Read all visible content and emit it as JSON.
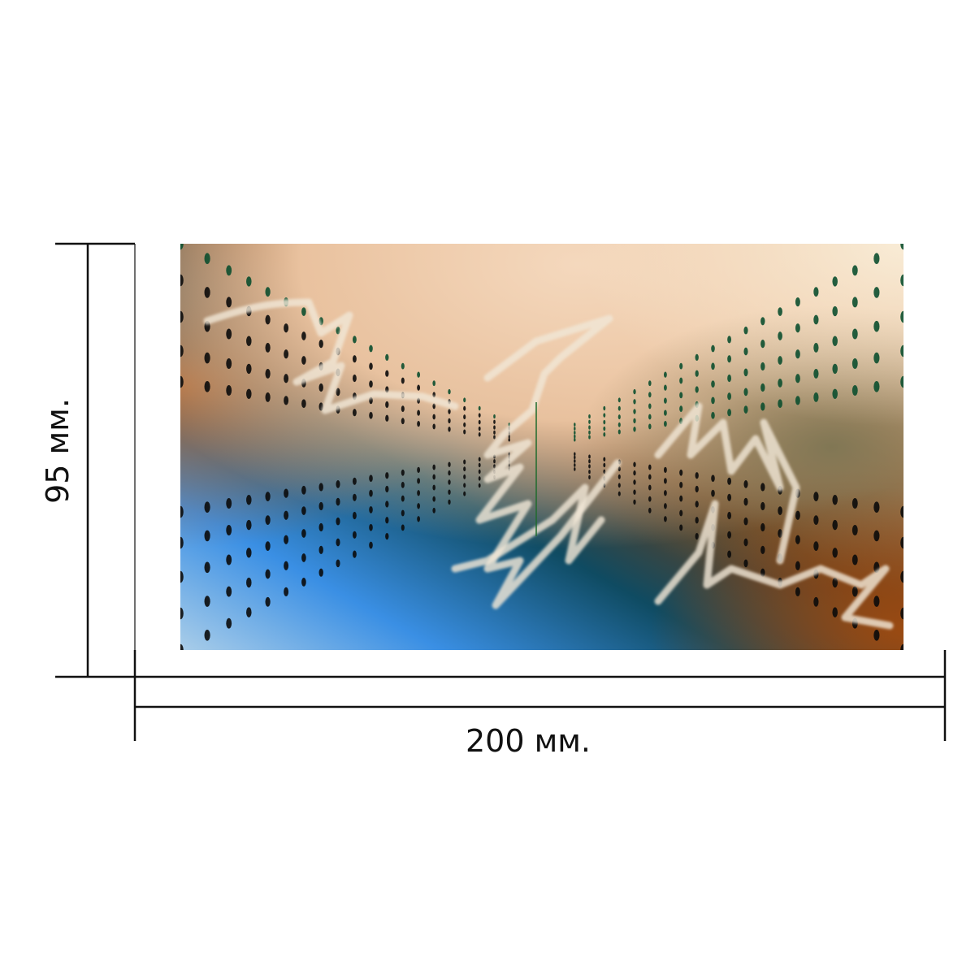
{
  "dimensions": {
    "width_label": "200 мм.",
    "height_label": "95 мм."
  },
  "artwork": {
    "description_colors": {
      "peach": "#f1cfb1",
      "cream": "#f6e6cc",
      "rust": "#a4561c",
      "brown": "#6a3f1c",
      "teal": "#0f4b62",
      "blue": "#3a8fe4",
      "olive": "#7d7553",
      "dot_dark": "#0b0b0b",
      "dot_green": "#0c4f2f",
      "scribble": "#f0e6d6"
    }
  }
}
